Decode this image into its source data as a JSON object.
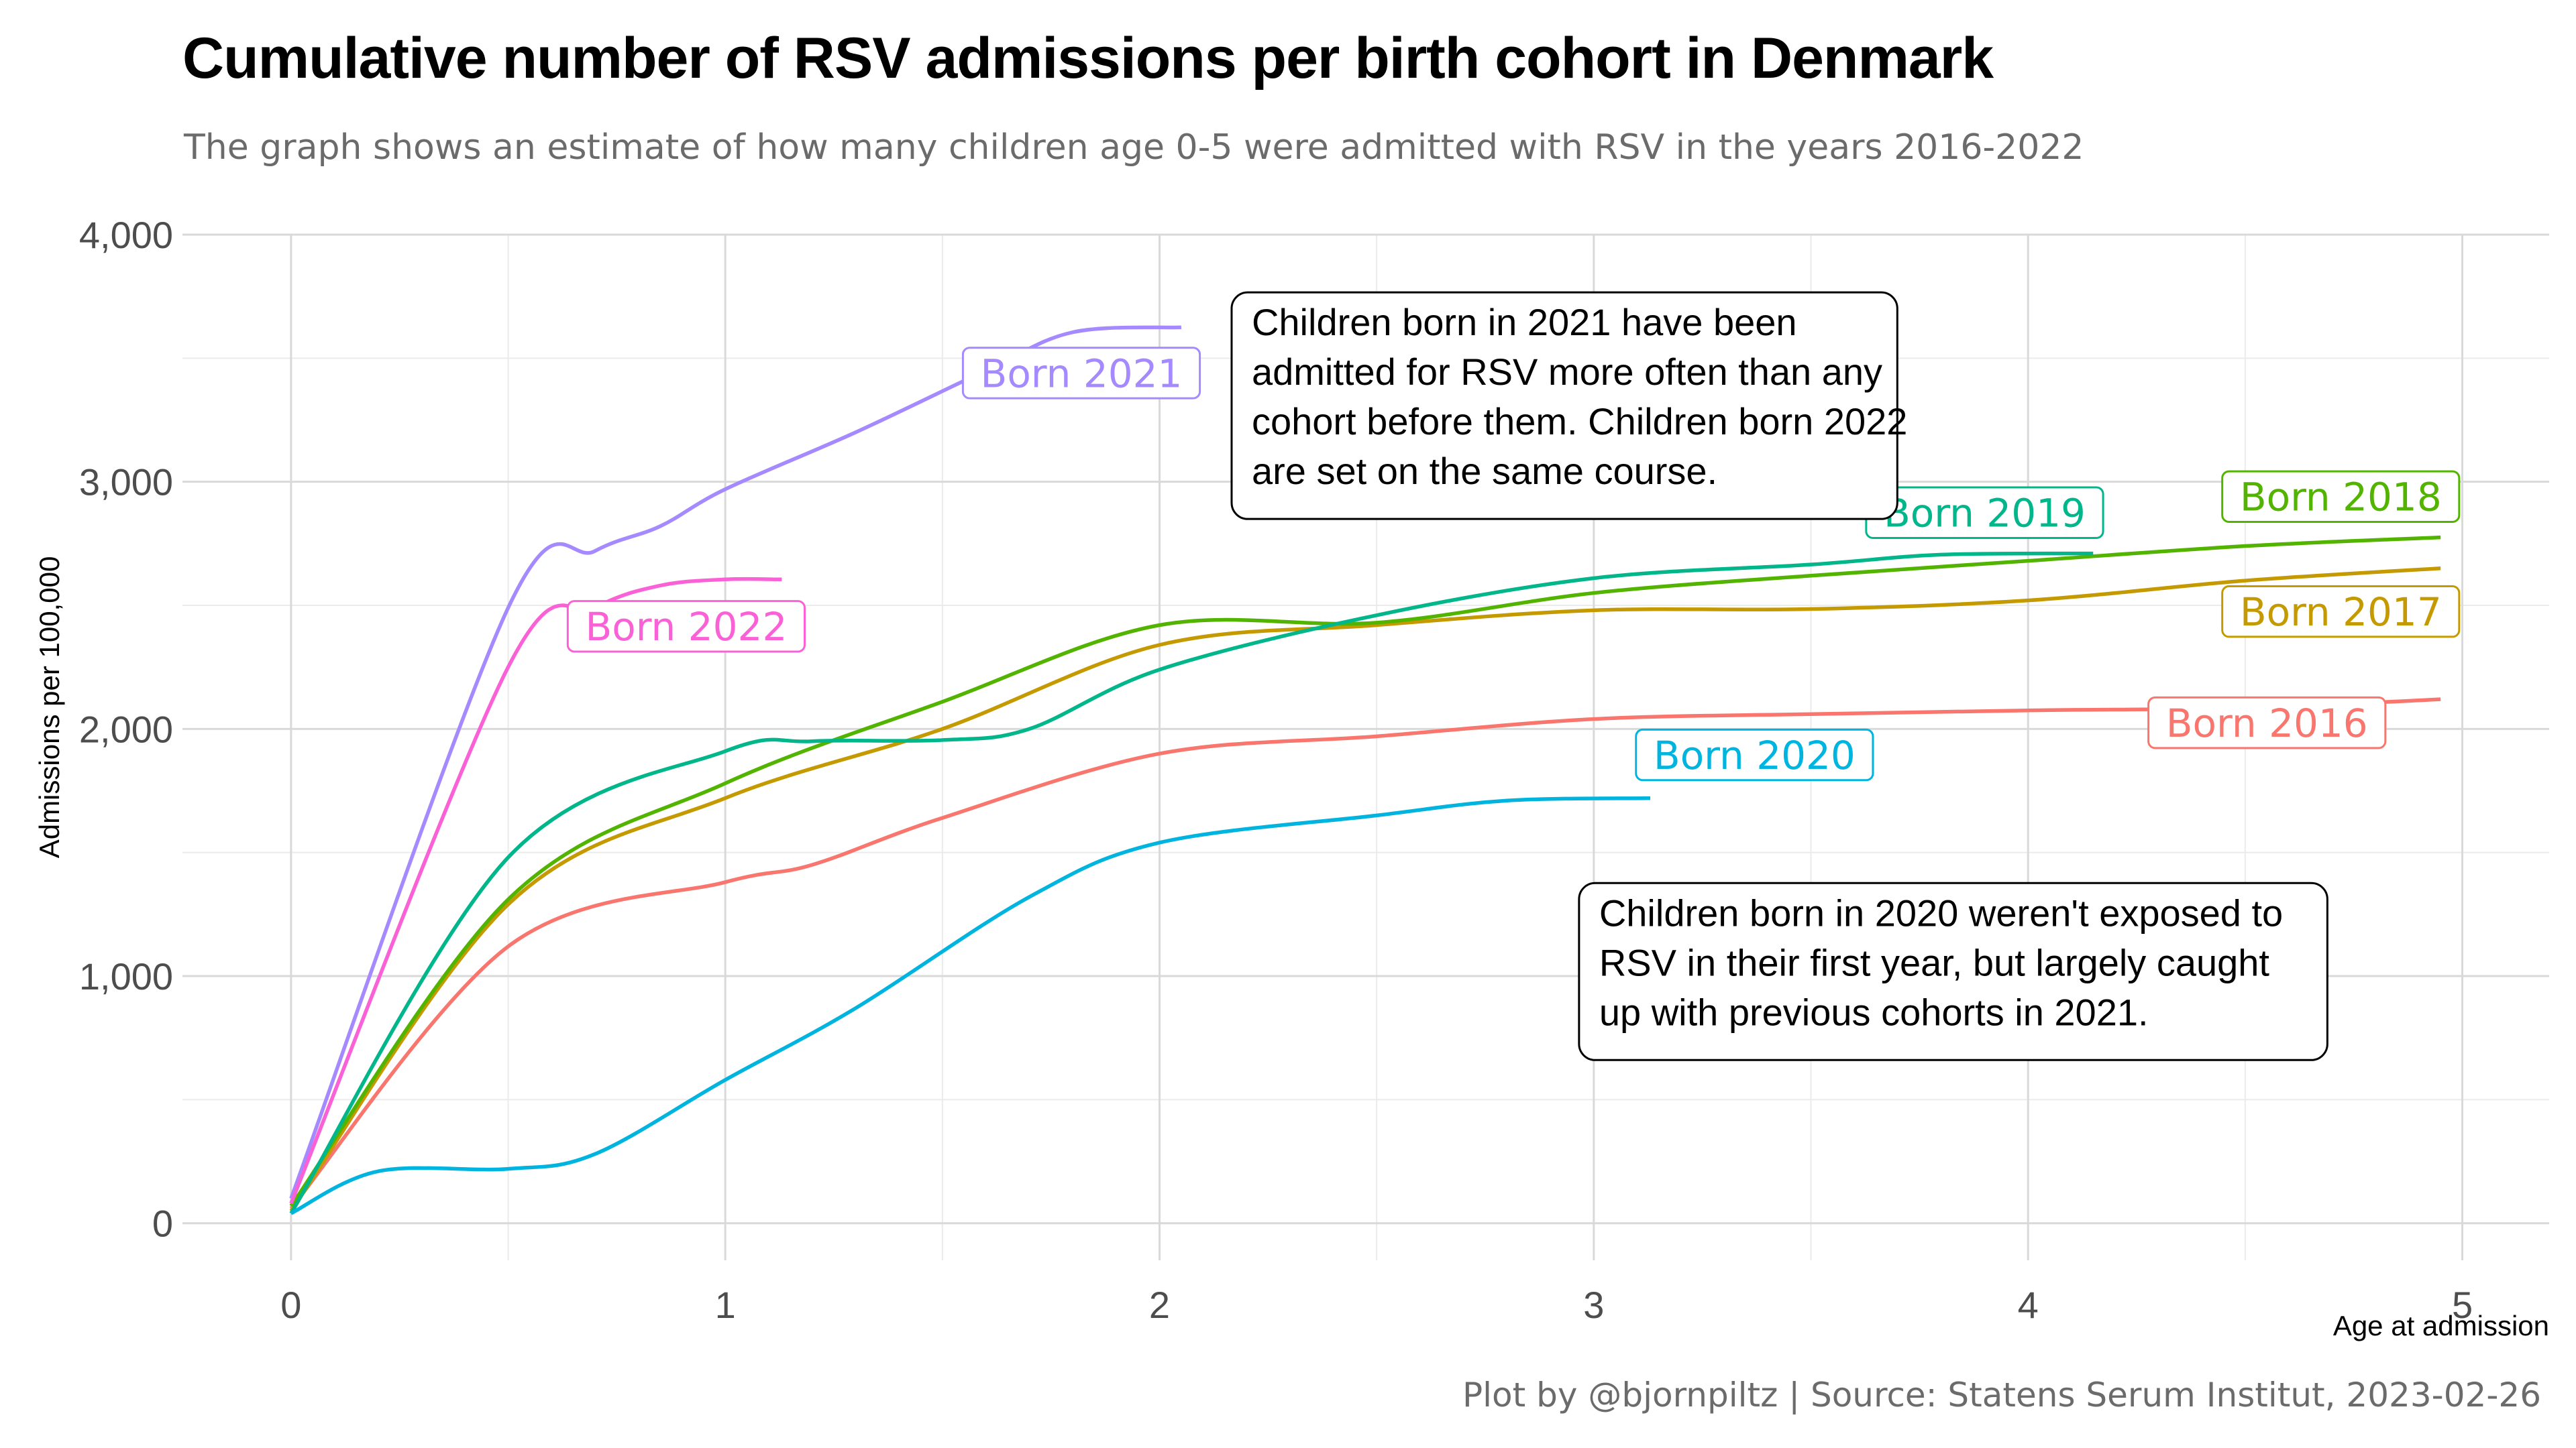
{
  "title": "Cumulative number of RSV admissions per birth cohort in Denmark",
  "subtitle": "The graph shows an estimate of how many children age 0-5 were admitted with RSV in the years 2016-2022",
  "caption": "Plot by @bjornpiltz | Source: Statens Serum Institut, 2023-02-26",
  "chart_data": {
    "type": "line",
    "xlabel": "Age at admission",
    "ylabel": "Admissions per 100,000",
    "xlim": [
      -0.25,
      5.2
    ],
    "ylim": [
      -150,
      4000
    ],
    "xticks": [
      0,
      1,
      2,
      3,
      4,
      5
    ],
    "xtick_labels": [
      "0",
      "1",
      "2",
      "3",
      "4",
      "5"
    ],
    "yticks": [
      0,
      1000,
      2000,
      3000,
      4000
    ],
    "ytick_labels": [
      "0",
      "1,000",
      "2,000",
      "3,000",
      "4,000"
    ],
    "grid": true,
    "legend": "none (direct labels)",
    "series": [
      {
        "name": "Born 2016",
        "color": "#F8766D",
        "x": [
          0,
          0.5,
          1.0,
          1.2,
          1.5,
          2.0,
          2.5,
          3.0,
          3.5,
          4.0,
          4.5,
          4.95
        ],
        "y": [
          60,
          1120,
          1380,
          1450,
          1640,
          1900,
          1970,
          2040,
          2060,
          2075,
          2085,
          2120
        ]
      },
      {
        "name": "Born 2017",
        "color": "#C49A00",
        "x": [
          0,
          0.5,
          1.0,
          1.5,
          2.0,
          2.5,
          3.0,
          3.5,
          4.0,
          4.5,
          4.95
        ],
        "y": [
          50,
          1290,
          1720,
          2000,
          2340,
          2420,
          2480,
          2485,
          2520,
          2600,
          2650
        ]
      },
      {
        "name": "Born 2018",
        "color": "#53B400",
        "x": [
          0,
          0.5,
          1.0,
          1.5,
          2.0,
          2.5,
          3.0,
          3.5,
          4.0,
          4.5,
          4.95
        ],
        "y": [
          70,
          1310,
          1780,
          2110,
          2420,
          2430,
          2550,
          2620,
          2680,
          2740,
          2775
        ]
      },
      {
        "name": "Born 2019",
        "color": "#00B68A",
        "x": [
          0,
          0.5,
          1.0,
          1.2,
          1.5,
          1.7,
          2.0,
          2.5,
          3.0,
          3.5,
          3.8,
          4.15
        ],
        "y": [
          40,
          1480,
          1910,
          1950,
          1955,
          2000,
          2240,
          2460,
          2610,
          2665,
          2705,
          2710
        ]
      },
      {
        "name": "Born 2020",
        "color": "#00B4E0",
        "x": [
          0,
          0.2,
          0.5,
          0.7,
          1.0,
          1.3,
          1.7,
          2.0,
          2.5,
          2.8,
          3.13
        ],
        "y": [
          40,
          210,
          220,
          280,
          580,
          870,
          1320,
          1540,
          1650,
          1710,
          1720
        ]
      },
      {
        "name": "Born 2021",
        "color": "#A58AFF",
        "x": [
          0,
          0.5,
          0.7,
          0.85,
          1.0,
          1.3,
          1.6,
          1.8,
          2.05
        ],
        "y": [
          100,
          2490,
          2720,
          2820,
          2970,
          3200,
          3450,
          3605,
          3625
        ]
      },
      {
        "name": "Born 2022",
        "color": "#FB61D7",
        "x": [
          0,
          0.5,
          0.7,
          0.85,
          1.0,
          1.13
        ],
        "y": [
          80,
          2250,
          2490,
          2580,
          2605,
          2605
        ]
      }
    ],
    "series_labels": [
      {
        "text": "Born 2016",
        "color": "#F8766D",
        "x": 4.55,
        "y": 2025
      },
      {
        "text": "Born 2017",
        "color": "#C49A00",
        "x": 4.72,
        "y": 2475
      },
      {
        "text": "Born 2018",
        "color": "#53B400",
        "x": 4.72,
        "y": 2940
      },
      {
        "text": "Born 2019",
        "color": "#00B68A",
        "x": 3.9,
        "y": 2875
      },
      {
        "text": "Born 2020",
        "color": "#00B4E0",
        "x": 3.37,
        "y": 1895
      },
      {
        "text": "Born 2021",
        "color": "#A58AFF",
        "x": 1.82,
        "y": 3440
      },
      {
        "text": "Born 2022",
        "color": "#FB61D7",
        "x": 0.91,
        "y": 2415
      }
    ],
    "annotations": [
      {
        "lines": [
          "Children born in 2021 have been",
          "admitted for RSV more often than any",
          "cohort before them. Children born 2022",
          "are set on the same course."
        ],
        "x": 2.2,
        "y": 3750
      },
      {
        "lines": [
          "Children born in 2020 weren't exposed to",
          "RSV in their first year, but largely caught",
          "up with previous cohorts in 2021."
        ],
        "x": 3.0,
        "y": 1360
      }
    ]
  }
}
